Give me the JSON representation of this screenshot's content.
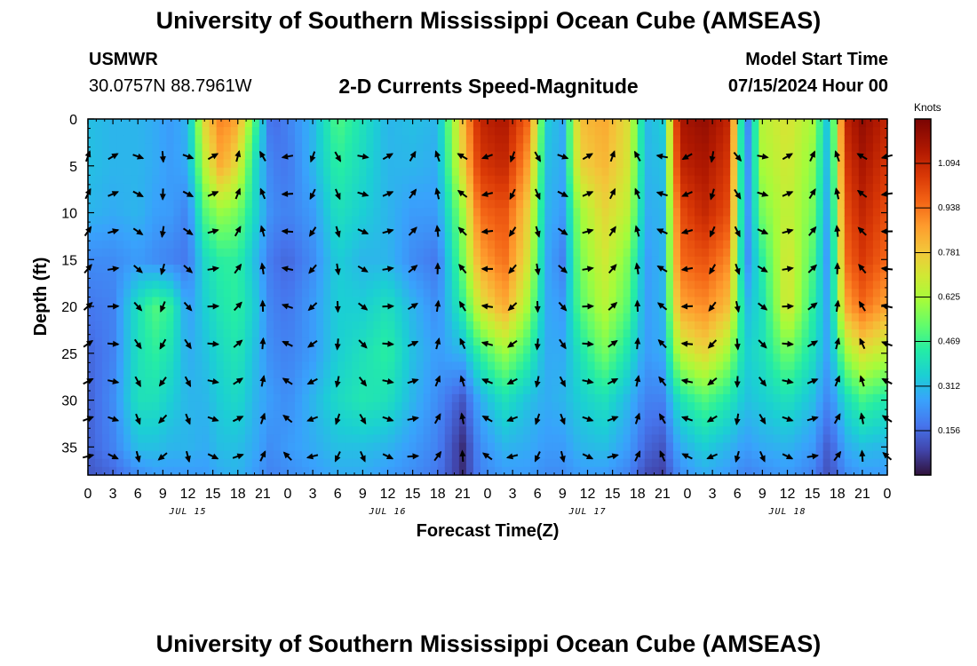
{
  "header": {
    "title": "University of Southern Mississippi Ocean Cube (AMSEAS)",
    "station_name": "USMWR",
    "station_coords": "30.0757N  88.7961W",
    "plot_title": "2-D Currents Speed-Magnitude",
    "model_start_label": "Model Start Time",
    "model_start_value": "07/15/2024 Hour 00"
  },
  "footer": {
    "title": "University of Southern Mississippi Ocean Cube (AMSEAS)"
  },
  "chart_data": {
    "type": "heatmap",
    "title": "2-D Currents Speed-Magnitude",
    "xlabel": "Forecast Time(Z)",
    "ylabel": "Depth (ft)",
    "x_unit": "hours from 07/15/2024 00Z",
    "xlim": [
      0,
      96
    ],
    "ylim": [
      38,
      0
    ],
    "x_tick_values": [
      0,
      3,
      6,
      9,
      12,
      15,
      18,
      21,
      24,
      27,
      30,
      33,
      36,
      39,
      42,
      45,
      48,
      51,
      54,
      57,
      60,
      63,
      66,
      69,
      72,
      75,
      78,
      81,
      84,
      87,
      90,
      93,
      96
    ],
    "x_tick_labels": [
      "0",
      "3",
      "6",
      "9",
      "12",
      "15",
      "18",
      "21",
      "0",
      "3",
      "6",
      "9",
      "12",
      "15",
      "18",
      "21",
      "0",
      "3",
      "6",
      "9",
      "12",
      "15",
      "18",
      "21",
      "0",
      "3",
      "6",
      "9",
      "12",
      "15",
      "18",
      "21",
      "0"
    ],
    "day_labels": [
      {
        "label": "JUL 15",
        "hour": 12
      },
      {
        "label": "JUL 16",
        "hour": 36
      },
      {
        "label": "JUL 17",
        "hour": 60
      },
      {
        "label": "JUL 18",
        "hour": 84
      }
    ],
    "y_ticks": [
      0,
      5,
      10,
      15,
      20,
      25,
      30,
      35
    ],
    "colorbar": {
      "label": "Knots",
      "min": 0.0,
      "max": 1.25,
      "ticks": [
        0.156,
        0.312,
        0.469,
        0.625,
        0.781,
        0.938,
        1.094
      ]
    },
    "speed_columns": [
      {
        "hour": 0,
        "speeds": [
          0.32,
          0.32,
          0.3,
          0.22,
          0.18,
          0.15,
          0.14,
          0.14,
          0.12
        ]
      },
      {
        "hour": 3,
        "speeds": [
          0.3,
          0.3,
          0.28,
          0.22,
          0.2,
          0.2,
          0.22,
          0.2,
          0.15
        ]
      },
      {
        "hour": 6,
        "speeds": [
          0.3,
          0.3,
          0.3,
          0.25,
          0.4,
          0.4,
          0.4,
          0.32,
          0.22
        ]
      },
      {
        "hour": 8,
        "speeds": [
          0.28,
          0.28,
          0.26,
          0.22,
          0.5,
          0.45,
          0.4,
          0.32,
          0.25
        ]
      },
      {
        "hour": 10,
        "speeds": [
          0.25,
          0.25,
          0.25,
          0.2,
          0.45,
          0.4,
          0.35,
          0.3,
          0.25
        ]
      },
      {
        "hour": 12,
        "speeds": [
          0.3,
          0.28,
          0.2,
          0.18,
          0.25,
          0.28,
          0.3,
          0.3,
          0.25
        ]
      },
      {
        "hour": 14,
        "speeds": [
          0.75,
          0.65,
          0.5,
          0.38,
          0.35,
          0.32,
          0.3,
          0.28,
          0.25
        ]
      },
      {
        "hour": 16,
        "speeds": [
          0.92,
          0.85,
          0.6,
          0.45,
          0.42,
          0.38,
          0.35,
          0.32,
          0.28
        ]
      },
      {
        "hour": 18,
        "speeds": [
          0.85,
          0.72,
          0.55,
          0.45,
          0.45,
          0.42,
          0.38,
          0.32,
          0.3
        ]
      },
      {
        "hour": 20,
        "speeds": [
          0.5,
          0.4,
          0.38,
          0.32,
          0.35,
          0.32,
          0.3,
          0.28,
          0.25
        ]
      },
      {
        "hour": 22,
        "speeds": [
          0.15,
          0.2,
          0.22,
          0.18,
          0.2,
          0.22,
          0.25,
          0.22,
          0.2
        ]
      },
      {
        "hour": 24,
        "speeds": [
          0.2,
          0.18,
          0.2,
          0.15,
          0.18,
          0.2,
          0.22,
          0.25,
          0.22
        ]
      },
      {
        "hour": 27,
        "speeds": [
          0.3,
          0.3,
          0.25,
          0.22,
          0.25,
          0.25,
          0.3,
          0.28,
          0.25
        ]
      },
      {
        "hour": 30,
        "speeds": [
          0.5,
          0.45,
          0.4,
          0.35,
          0.35,
          0.35,
          0.38,
          0.32,
          0.28
        ]
      },
      {
        "hour": 33,
        "speeds": [
          0.4,
          0.38,
          0.35,
          0.3,
          0.35,
          0.4,
          0.42,
          0.32,
          0.28
        ]
      },
      {
        "hour": 36,
        "speeds": [
          0.3,
          0.3,
          0.3,
          0.3,
          0.4,
          0.45,
          0.4,
          0.3,
          0.25
        ]
      },
      {
        "hour": 39,
        "speeds": [
          0.32,
          0.3,
          0.25,
          0.22,
          0.3,
          0.32,
          0.3,
          0.25,
          0.22
        ]
      },
      {
        "hour": 42,
        "speeds": [
          0.3,
          0.28,
          0.25,
          0.18,
          0.22,
          0.25,
          0.22,
          0.2,
          0.18
        ]
      },
      {
        "hour": 45,
        "speeds": [
          0.8,
          0.75,
          0.6,
          0.55,
          0.45,
          0.3,
          0.12,
          0.05,
          0.05
        ]
      },
      {
        "hour": 47,
        "speeds": [
          1.1,
          1.05,
          0.95,
          0.85,
          0.7,
          0.45,
          0.28,
          0.22,
          0.2
        ]
      },
      {
        "hour": 50,
        "speeds": [
          1.15,
          1.1,
          1.0,
          0.95,
          0.85,
          0.6,
          0.4,
          0.3,
          0.25
        ]
      },
      {
        "hour": 53,
        "speeds": [
          0.95,
          0.85,
          0.75,
          0.7,
          0.6,
          0.45,
          0.32,
          0.28,
          0.25
        ]
      },
      {
        "hour": 55,
        "speeds": [
          0.35,
          0.32,
          0.3,
          0.28,
          0.28,
          0.28,
          0.28,
          0.25,
          0.22
        ]
      },
      {
        "hour": 57,
        "speeds": [
          0.28,
          0.28,
          0.25,
          0.2,
          0.25,
          0.28,
          0.3,
          0.25,
          0.22
        ]
      },
      {
        "hour": 59,
        "speeds": [
          0.8,
          0.75,
          0.6,
          0.55,
          0.5,
          0.4,
          0.35,
          0.3,
          0.25
        ]
      },
      {
        "hour": 62,
        "speeds": [
          0.85,
          0.82,
          0.75,
          0.7,
          0.65,
          0.55,
          0.4,
          0.32,
          0.25
        ]
      },
      {
        "hour": 65,
        "speeds": [
          0.72,
          0.7,
          0.65,
          0.55,
          0.5,
          0.4,
          0.3,
          0.25,
          0.2
        ]
      },
      {
        "hour": 67,
        "speeds": [
          0.3,
          0.3,
          0.28,
          0.25,
          0.25,
          0.25,
          0.2,
          0.15,
          0.1
        ]
      },
      {
        "hour": 69,
        "speeds": [
          0.35,
          0.32,
          0.3,
          0.3,
          0.3,
          0.28,
          0.2,
          0.12,
          0.08
        ]
      },
      {
        "hour": 71,
        "speeds": [
          1.15,
          1.1,
          1.0,
          0.95,
          0.85,
          0.65,
          0.4,
          0.28,
          0.22
        ]
      },
      {
        "hour": 74,
        "speeds": [
          1.2,
          1.15,
          1.1,
          1.0,
          0.9,
          0.75,
          0.5,
          0.35,
          0.28
        ]
      },
      {
        "hour": 77,
        "speeds": [
          1.1,
          1.05,
          1.0,
          0.9,
          0.8,
          0.6,
          0.42,
          0.3,
          0.25
        ]
      },
      {
        "hour": 79,
        "speeds": [
          0.15,
          0.18,
          0.2,
          0.2,
          0.3,
          0.35,
          0.32,
          0.25,
          0.2
        ]
      },
      {
        "hour": 81,
        "speeds": [
          0.65,
          0.62,
          0.55,
          0.45,
          0.4,
          0.4,
          0.35,
          0.28,
          0.22
        ]
      },
      {
        "hour": 84,
        "speeds": [
          0.72,
          0.7,
          0.68,
          0.72,
          0.72,
          0.55,
          0.4,
          0.3,
          0.25
        ]
      },
      {
        "hour": 87,
        "speeds": [
          0.62,
          0.58,
          0.55,
          0.5,
          0.45,
          0.4,
          0.32,
          0.25,
          0.2
        ]
      },
      {
        "hour": 89,
        "speeds": [
          0.3,
          0.28,
          0.25,
          0.22,
          0.25,
          0.25,
          0.2,
          0.12,
          0.1
        ]
      },
      {
        "hour": 91,
        "speeds": [
          1.1,
          1.05,
          1.0,
          0.95,
          0.85,
          0.6,
          0.38,
          0.28,
          0.22
        ]
      },
      {
        "hour": 93,
        "speeds": [
          1.2,
          1.15,
          1.1,
          1.05,
          0.95,
          0.72,
          0.48,
          0.32,
          0.25
        ]
      },
      {
        "hour": 96,
        "speeds": [
          1.1,
          1.05,
          1.0,
          0.95,
          0.85,
          0.65,
          0.42,
          0.3,
          0.25
        ]
      }
    ],
    "speed_depths": [
      0,
      5,
      10,
      15,
      20,
      25,
      30,
      35,
      38
    ],
    "vector_depths": [
      4,
      8,
      12,
      16,
      20,
      24,
      28,
      32,
      36
    ],
    "vector_hours": [
      0,
      3,
      6,
      9,
      12,
      15,
      18,
      21,
      24,
      27,
      30,
      33,
      36,
      39,
      42,
      45,
      48,
      51,
      54,
      57,
      60,
      63,
      66,
      69,
      72,
      75,
      78,
      81,
      84,
      87,
      90,
      93,
      96
    ],
    "vector_direction_deg": [
      20,
      60,
      110,
      175,
      110,
      60,
      15,
      330,
      260,
      200,
      150,
      100,
      60,
      30,
      340,
      300,
      250,
      200,
      150,
      110,
      60,
      20,
      330,
      280,
      240,
      190,
      140,
      100,
      60,
      25,
      340,
      300,
      255
    ]
  }
}
